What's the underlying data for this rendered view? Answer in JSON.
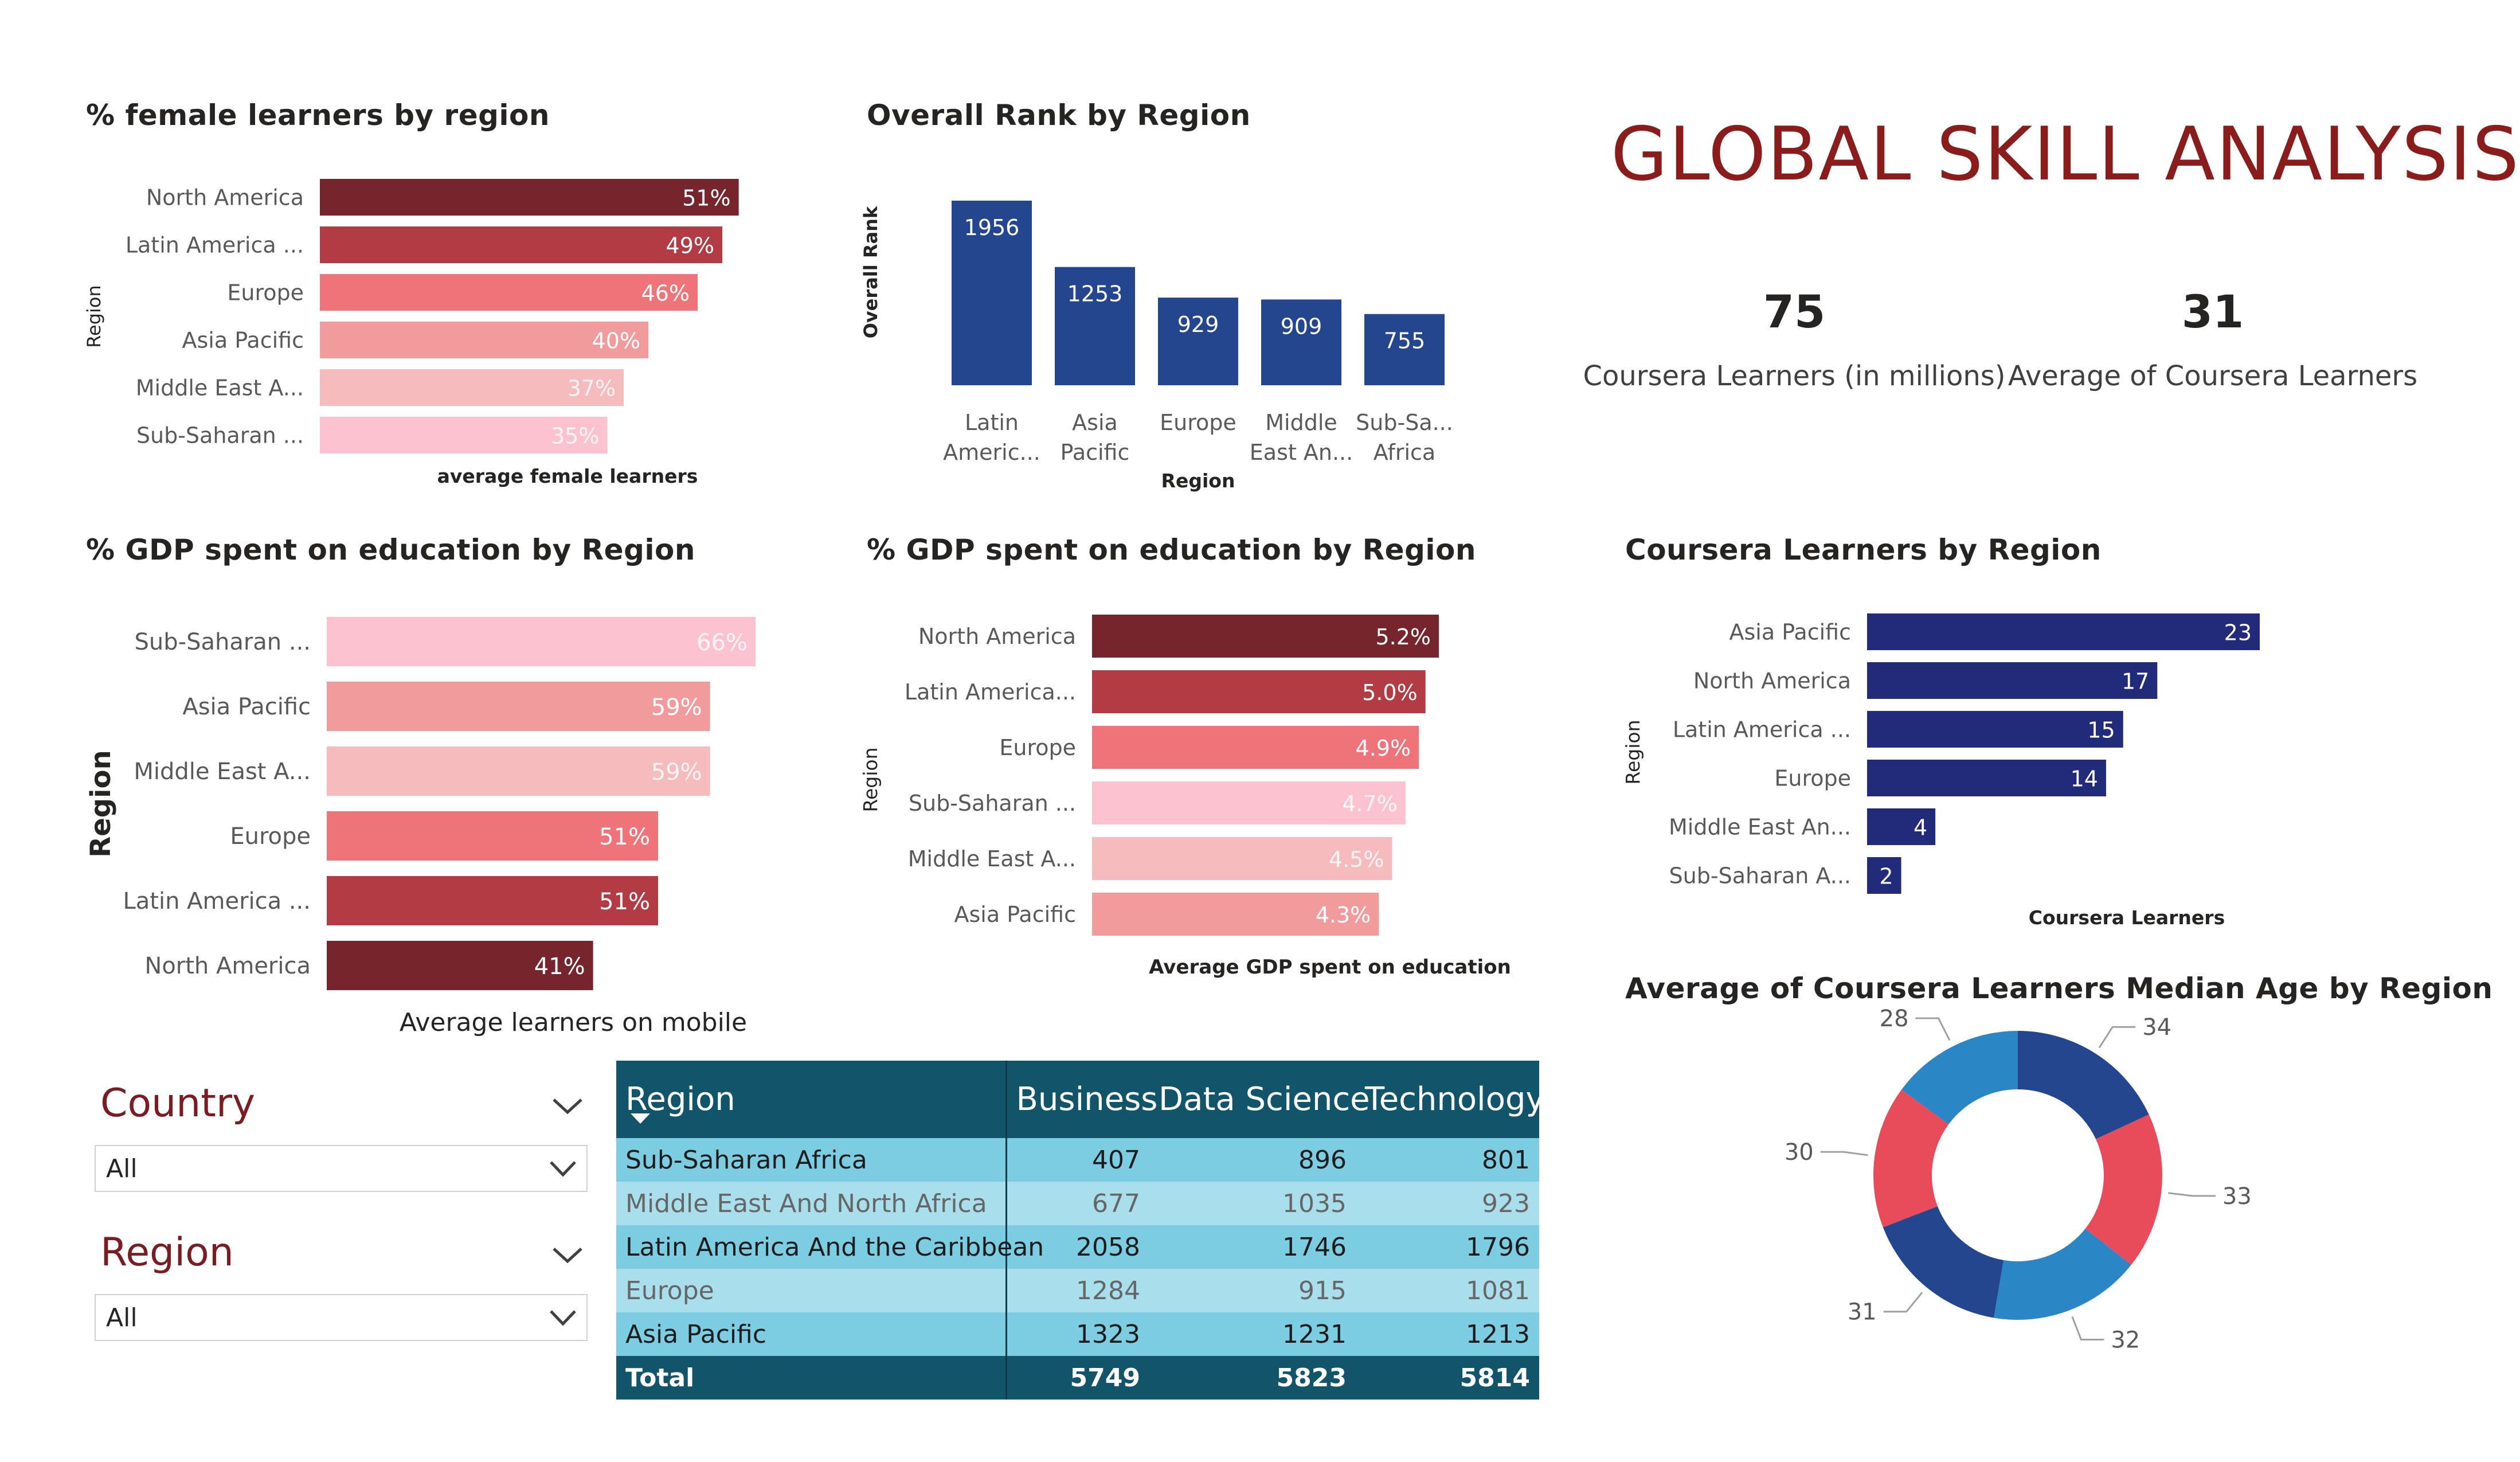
{
  "header": {
    "title": "GLOBAL SKILL ANALYSIS",
    "kpis": [
      {
        "value": "75",
        "label": "Coursera Learners (in millions)"
      },
      {
        "value": "31",
        "label": "Average of Coursera Learners"
      }
    ]
  },
  "slicers": {
    "country": {
      "title": "Country",
      "value": "All"
    },
    "region": {
      "title": "Region",
      "value": "All"
    }
  },
  "matrix": {
    "headers": [
      "Region",
      "Business",
      "Data Science",
      "Technology"
    ],
    "rows": [
      {
        "region": "Sub-Saharan Africa",
        "business": "407",
        "data_science": "896",
        "technology": "801"
      },
      {
        "region": "Middle East And North Africa",
        "business": "677",
        "data_science": "1035",
        "technology": "923"
      },
      {
        "region": "Latin America And the Caribbean",
        "business": "2058",
        "data_science": "1746",
        "technology": "1796"
      },
      {
        "region": "Europe",
        "business": "1284",
        "data_science": "915",
        "technology": "1081"
      },
      {
        "region": "Asia Pacific",
        "business": "1323",
        "data_science": "1231",
        "technology": "1213"
      }
    ],
    "total": {
      "label": "Total",
      "business": "5749",
      "data_science": "5823",
      "technology": "5814"
    }
  },
  "chart_data": [
    {
      "id": "female",
      "type": "bar",
      "orientation": "horizontal",
      "title": "% female learners by region",
      "xlabel": "average female learners",
      "ylabel": "Region",
      "categories": [
        "North America",
        "Latin America ...",
        "Europe",
        "Asia Pacific",
        "Middle East A...",
        "Sub-Saharan ..."
      ],
      "values": [
        51,
        49,
        46,
        40,
        37,
        35
      ],
      "value_labels": [
        "51%",
        "49%",
        "46%",
        "40%",
        "37%",
        "35%"
      ],
      "colors": [
        "#77252d",
        "#b33b44",
        "#ee7479",
        "#f29b9c",
        "#f5bbbd",
        "#fdc2d0"
      ],
      "xlim": [
        0,
        52
      ]
    },
    {
      "id": "rank",
      "type": "bar",
      "orientation": "vertical",
      "title": "Overall Rank by Region",
      "xlabel": "Region",
      "ylabel": "Overall Rank",
      "categories": [
        "Latin Americ...",
        "Asia Pacific",
        "Europe",
        "Middle East An...",
        "Sub-Sa... Africa"
      ],
      "category_lines": [
        [
          "Latin",
          "Americ..."
        ],
        [
          "Asia",
          "Pacific"
        ],
        [
          "Europe"
        ],
        [
          "Middle",
          "East An..."
        ],
        [
          "Sub-Sa...",
          "Africa"
        ]
      ],
      "values": [
        1956,
        1253,
        929,
        909,
        755
      ],
      "value_labels": [
        "1956",
        "1253",
        "929",
        "909",
        "755"
      ],
      "colors": [
        "#23468f"
      ]
    },
    {
      "id": "mobile",
      "type": "bar",
      "orientation": "horizontal",
      "title": "% GDP spent on education by Region",
      "xlabel": "Average learners on mobile",
      "ylabel": "Region",
      "categories": [
        "Sub-Saharan ...",
        "Asia Pacific",
        "Middle East A...",
        "Europe",
        "Latin America ...",
        "North America"
      ],
      "values": [
        66,
        59,
        59,
        51,
        51,
        41
      ],
      "value_labels": [
        "66%",
        "59%",
        "59%",
        "51%",
        "51%",
        "41%"
      ],
      "colors": [
        "#fdc2d0",
        "#f29b9c",
        "#f5bbbd",
        "#ee7479",
        "#b33b44",
        "#77252d"
      ],
      "xlim": [
        0,
        66
      ]
    },
    {
      "id": "gdp",
      "type": "bar",
      "orientation": "horizontal",
      "title": "% GDP spent on education by Region",
      "xlabel": "Average GDP spent on education",
      "ylabel": "Region",
      "categories": [
        "North America",
        "Latin America...",
        "Europe",
        "Sub-Saharan ...",
        "Middle East A...",
        "Asia Pacific"
      ],
      "values": [
        5.2,
        5.0,
        4.9,
        4.7,
        4.5,
        4.3
      ],
      "value_labels": [
        "5.2%",
        "5.0%",
        "4.9%",
        "4.7%",
        "4.5%",
        "4.3%"
      ],
      "colors": [
        "#77252d",
        "#b33b44",
        "#ee7479",
        "#fdc2d0",
        "#f5bbbd",
        "#f29b9c"
      ],
      "xlim": [
        0,
        5.2
      ]
    },
    {
      "id": "learners",
      "type": "bar",
      "orientation": "horizontal",
      "title": "Coursera Learners by Region",
      "xlabel": "Coursera Learners",
      "ylabel": "Region",
      "categories": [
        "Asia Pacific",
        "North America",
        "Latin America ...",
        "Europe",
        "Middle East An...",
        "Sub-Saharan A..."
      ],
      "values": [
        23,
        17,
        15,
        14,
        4,
        2
      ],
      "value_labels": [
        "23",
        "17",
        "15",
        "14",
        "4",
        "2"
      ],
      "colors": [
        "#222b7a"
      ],
      "xlim": [
        0,
        23
      ]
    },
    {
      "id": "donut",
      "type": "pie",
      "variant": "donut",
      "title": "Average of Coursera Learners Median Age by Region",
      "values": [
        34,
        33,
        32,
        31,
        30,
        28
      ],
      "value_labels": [
        "34",
        "33",
        "32",
        "31",
        "30",
        "28"
      ],
      "colors": [
        "#23468f",
        "#e84b5a",
        "#2b86c5",
        "#23468f",
        "#e84b5a",
        "#2b86c5"
      ]
    }
  ]
}
